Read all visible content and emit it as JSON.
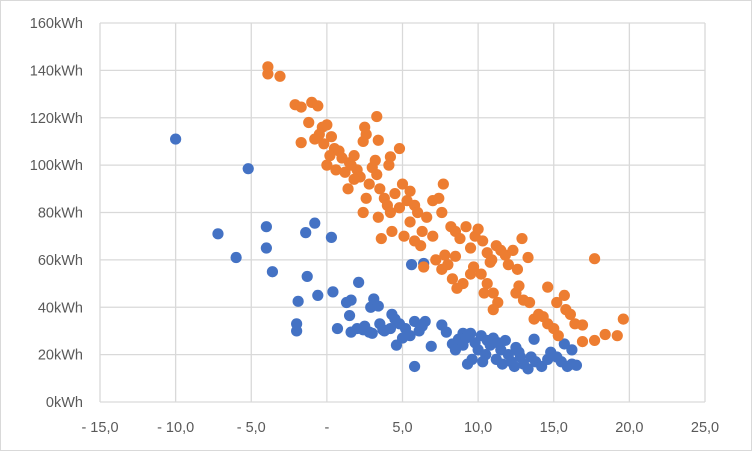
{
  "chart_data": {
    "type": "scatter",
    "title": "",
    "xlabel": "",
    "ylabel": "",
    "xlim": [
      -15,
      25
    ],
    "ylim": [
      0,
      160
    ],
    "grid": true,
    "legend": "none",
    "x_ticks": [
      {
        "value": -15,
        "label": "- 15,0"
      },
      {
        "value": -10,
        "label": "- 10,0"
      },
      {
        "value": -5,
        "label": "- 5,0"
      },
      {
        "value": 0,
        "label": "-"
      },
      {
        "value": 5,
        "label": "5,0"
      },
      {
        "value": 10,
        "label": "10,0"
      },
      {
        "value": 15,
        "label": "15,0"
      },
      {
        "value": 20,
        "label": "20,0"
      },
      {
        "value": 25,
        "label": "25,0"
      }
    ],
    "y_ticks": [
      {
        "value": 0,
        "label": "0kWh"
      },
      {
        "value": 20,
        "label": "20kWh"
      },
      {
        "value": 40,
        "label": "40kWh"
      },
      {
        "value": 60,
        "label": "60kWh"
      },
      {
        "value": 80,
        "label": "80kWh"
      },
      {
        "value": 100,
        "label": "100kWh"
      },
      {
        "value": 120,
        "label": "120kWh"
      },
      {
        "value": 140,
        "label": "140kWh"
      },
      {
        "value": 160,
        "label": "160kWh"
      }
    ],
    "series": [
      {
        "color": "#4472C4",
        "points": [
          [
            -10,
            111
          ],
          [
            -5.2,
            98.5
          ],
          [
            -7.2,
            71
          ],
          [
            -4,
            74
          ],
          [
            -0.8,
            75.5
          ],
          [
            -1.4,
            71.5
          ],
          [
            0.3,
            69.5
          ],
          [
            -4,
            65
          ],
          [
            -6,
            61
          ],
          [
            -3.6,
            55
          ],
          [
            -1.3,
            53
          ],
          [
            2.1,
            50.5
          ],
          [
            -1.9,
            42.5
          ],
          [
            -0.6,
            45
          ],
          [
            0.4,
            46.5
          ],
          [
            -2,
            33
          ],
          [
            -2,
            30
          ],
          [
            0.7,
            31
          ],
          [
            1.5,
            36.5
          ],
          [
            1.3,
            42
          ],
          [
            1.6,
            43
          ],
          [
            1.6,
            29.5
          ],
          [
            2.4,
            30.5
          ],
          [
            2.9,
            40
          ],
          [
            3.1,
            43.5
          ],
          [
            3.4,
            40.5
          ],
          [
            4.3,
            37
          ],
          [
            2.8,
            29.5
          ],
          [
            3.7,
            30.5
          ],
          [
            4.6,
            24
          ],
          [
            5.6,
            58
          ],
          [
            6.4,
            58.5
          ],
          [
            5.8,
            15
          ],
          [
            6.5,
            34
          ],
          [
            6.9,
            23.5
          ],
          [
            7.6,
            32.5
          ],
          [
            7.9,
            29.5
          ],
          [
            8.3,
            24.5
          ],
          [
            8.7,
            26.5
          ],
          [
            9,
            29
          ],
          [
            4.8,
            33
          ],
          [
            5.2,
            31
          ],
          [
            5.5,
            28
          ],
          [
            5.8,
            34
          ],
          [
            6.1,
            30
          ],
          [
            6.3,
            32
          ],
          [
            4.2,
            31
          ],
          [
            3.8,
            30
          ],
          [
            5,
            27
          ],
          [
            4.5,
            35
          ],
          [
            2.5,
            32
          ],
          [
            2,
            31
          ],
          [
            3,
            29
          ],
          [
            3.5,
            33
          ],
          [
            9.2,
            27
          ],
          [
            9.5,
            29
          ],
          [
            9.8,
            25
          ],
          [
            10,
            22
          ],
          [
            10.2,
            28
          ],
          [
            10.5,
            20
          ],
          [
            10.8,
            24
          ],
          [
            11,
            27
          ],
          [
            11.2,
            18
          ],
          [
            11.5,
            22
          ],
          [
            11.8,
            26
          ],
          [
            12,
            20
          ],
          [
            12.2,
            17
          ],
          [
            12.5,
            23
          ],
          [
            12.8,
            19
          ],
          [
            13,
            16
          ],
          [
            9.3,
            16
          ],
          [
            9.6,
            18
          ],
          [
            10.3,
            17
          ],
          [
            11.6,
            16
          ],
          [
            12.4,
            15
          ],
          [
            13.3,
            14
          ],
          [
            13.8,
            17
          ],
          [
            14.2,
            15
          ],
          [
            14.6,
            18
          ],
          [
            14.8,
            21
          ],
          [
            15.2,
            19
          ],
          [
            15.5,
            17
          ],
          [
            15.9,
            15
          ],
          [
            16.2,
            16
          ],
          [
            16.5,
            15.5
          ],
          [
            8.5,
            22
          ],
          [
            9,
            24
          ],
          [
            10.6,
            26
          ],
          [
            11.3,
            25
          ],
          [
            12.7,
            21
          ],
          [
            13.5,
            19
          ],
          [
            13.7,
            26.5
          ],
          [
            15.7,
            24.5
          ],
          [
            16.2,
            22
          ]
        ]
      },
      {
        "color": "#ED7D31",
        "points": [
          [
            -3.9,
            141.5
          ],
          [
            -3.9,
            138.5
          ],
          [
            -3.1,
            137.5
          ],
          [
            -2.1,
            125.5
          ],
          [
            -1.7,
            124.5
          ],
          [
            -1,
            126.5
          ],
          [
            -0.6,
            125
          ],
          [
            -1.7,
            109.5
          ],
          [
            3.3,
            120.5
          ],
          [
            3.4,
            110.5
          ],
          [
            4.8,
            107
          ],
          [
            4.2,
            103.5
          ],
          [
            4.1,
            100
          ],
          [
            7.7,
            92
          ],
          [
            8.5,
            61.5
          ],
          [
            12.9,
            69
          ],
          [
            17.7,
            60.5
          ],
          [
            19.6,
            35
          ],
          [
            19.2,
            28
          ],
          [
            18.4,
            28.5
          ],
          [
            17.7,
            26
          ],
          [
            16.9,
            25.5
          ],
          [
            16.9,
            32.5
          ],
          [
            15.7,
            45
          ],
          [
            14.6,
            48.5
          ],
          [
            15.2,
            42
          ],
          [
            -0.5,
            113
          ],
          [
            -0.3,
            116
          ],
          [
            0,
            117
          ],
          [
            0.3,
            112
          ],
          [
            -0.2,
            109
          ],
          [
            0.5,
            107
          ],
          [
            0.2,
            104
          ],
          [
            0,
            100
          ],
          [
            0.6,
            98
          ],
          [
            1,
            103
          ],
          [
            1.2,
            97
          ],
          [
            1.5,
            101
          ],
          [
            1.8,
            104
          ],
          [
            2,
            98
          ],
          [
            2.2,
            95
          ],
          [
            2.4,
            110
          ],
          [
            2.5,
            116
          ],
          [
            2.6,
            113
          ],
          [
            1.8,
            94
          ],
          [
            1.4,
            90
          ],
          [
            2.6,
            86
          ],
          [
            2.8,
            92
          ],
          [
            3,
            99
          ],
          [
            3.3,
            96
          ],
          [
            3.5,
            90
          ],
          [
            3.8,
            86
          ],
          [
            4,
            83
          ],
          [
            2.4,
            80
          ],
          [
            3.4,
            78
          ],
          [
            3.6,
            69
          ],
          [
            4.2,
            80
          ],
          [
            4.5,
            88
          ],
          [
            4.8,
            82
          ],
          [
            5,
            92
          ],
          [
            5.3,
            85
          ],
          [
            5.5,
            89
          ],
          [
            5.8,
            83
          ],
          [
            5.5,
            76
          ],
          [
            6,
            80
          ],
          [
            6.3,
            72
          ],
          [
            6.6,
            78
          ],
          [
            7,
            85
          ],
          [
            7.4,
            86
          ],
          [
            7.6,
            80
          ],
          [
            7,
            70
          ],
          [
            6.2,
            66
          ],
          [
            5.8,
            68
          ],
          [
            6.4,
            57
          ],
          [
            7.2,
            60
          ],
          [
            7.6,
            56
          ],
          [
            7.8,
            62
          ],
          [
            8,
            58
          ],
          [
            8.2,
            74
          ],
          [
            8.5,
            72
          ],
          [
            8.8,
            69
          ],
          [
            9.2,
            74
          ],
          [
            9.5,
            65
          ],
          [
            9.8,
            70
          ],
          [
            10,
            73
          ],
          [
            10.3,
            68
          ],
          [
            10.6,
            63
          ],
          [
            10.8,
            59
          ],
          [
            11.2,
            66
          ],
          [
            11.5,
            64
          ],
          [
            11.8,
            62
          ],
          [
            12,
            58
          ],
          [
            12.3,
            64
          ],
          [
            12.6,
            56
          ],
          [
            10.2,
            54
          ],
          [
            10.6,
            50
          ],
          [
            11,
            46
          ],
          [
            11.3,
            42
          ],
          [
            11,
            39
          ],
          [
            10.4,
            46
          ],
          [
            9.5,
            54
          ],
          [
            9,
            50
          ],
          [
            8.6,
            48
          ],
          [
            12.5,
            46
          ],
          [
            13,
            43
          ],
          [
            13.4,
            42
          ],
          [
            13.7,
            35
          ],
          [
            14,
            37
          ],
          [
            14.3,
            36
          ],
          [
            14.6,
            33
          ],
          [
            15,
            31
          ],
          [
            15.3,
            28
          ],
          [
            15.8,
            39
          ],
          [
            16.1,
            37
          ],
          [
            16.4,
            33
          ],
          [
            12.7,
            49
          ],
          [
            -1.2,
            118
          ],
          [
            -0.8,
            111
          ],
          [
            0.8,
            106
          ],
          [
            1.6,
            100
          ],
          [
            3.2,
            102
          ],
          [
            4.3,
            72
          ],
          [
            5.1,
            70
          ],
          [
            8.3,
            52
          ],
          [
            9.7,
            57
          ],
          [
            10.9,
            60
          ],
          [
            13.3,
            61
          ]
        ]
      }
    ]
  }
}
